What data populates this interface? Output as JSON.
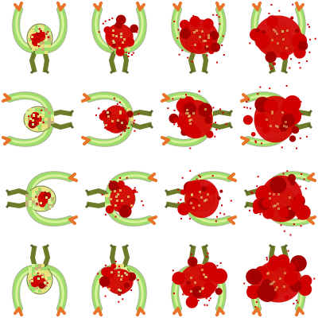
{
  "sheet": {
    "rows": 4,
    "cols": 4,
    "frame_count": 16,
    "background": "#ffffff",
    "palette": {
      "body_green": "#9fdc6a",
      "body_light": "#d8f29a",
      "body_yellow": "#e9e27a",
      "blood_red": "#d10000",
      "blood_dark": "#a30000",
      "claw_orange": "#e8742a",
      "leg_olive": "#6f7a2b",
      "pixel_outline": "#5a6b2a"
    },
    "frames": [
      {
        "row": 0,
        "col": 0,
        "blood": 0.05,
        "rotation": 0,
        "pose": "claws-up"
      },
      {
        "row": 0,
        "col": 1,
        "blood": 0.45,
        "rotation": 0,
        "pose": "claws-up"
      },
      {
        "row": 0,
        "col": 2,
        "blood": 0.7,
        "rotation": 0,
        "pose": "claws-up"
      },
      {
        "row": 0,
        "col": 3,
        "blood": 0.9,
        "rotation": 0,
        "pose": "claws-up"
      },
      {
        "row": 1,
        "col": 0,
        "blood": 0.05,
        "rotation": 270,
        "pose": "claws-left"
      },
      {
        "row": 1,
        "col": 1,
        "blood": 0.45,
        "rotation": 270,
        "pose": "claws-left"
      },
      {
        "row": 1,
        "col": 2,
        "blood": 0.7,
        "rotation": 270,
        "pose": "claws-left"
      },
      {
        "row": 1,
        "col": 3,
        "blood": 0.9,
        "rotation": 270,
        "pose": "claws-left"
      },
      {
        "row": 2,
        "col": 0,
        "blood": 0.05,
        "rotation": 90,
        "pose": "claws-right"
      },
      {
        "row": 2,
        "col": 1,
        "blood": 0.45,
        "rotation": 90,
        "pose": "claws-right"
      },
      {
        "row": 2,
        "col": 2,
        "blood": 0.7,
        "rotation": 90,
        "pose": "claws-right"
      },
      {
        "row": 2,
        "col": 3,
        "blood": 0.9,
        "rotation": 90,
        "pose": "claws-right"
      },
      {
        "row": 3,
        "col": 0,
        "blood": 0.05,
        "rotation": 180,
        "pose": "claws-down"
      },
      {
        "row": 3,
        "col": 1,
        "blood": 0.45,
        "rotation": 180,
        "pose": "claws-down"
      },
      {
        "row": 3,
        "col": 2,
        "blood": 0.7,
        "rotation": 180,
        "pose": "claws-down"
      },
      {
        "row": 3,
        "col": 3,
        "blood": 0.9,
        "rotation": 180,
        "pose": "claws-down"
      }
    ]
  }
}
